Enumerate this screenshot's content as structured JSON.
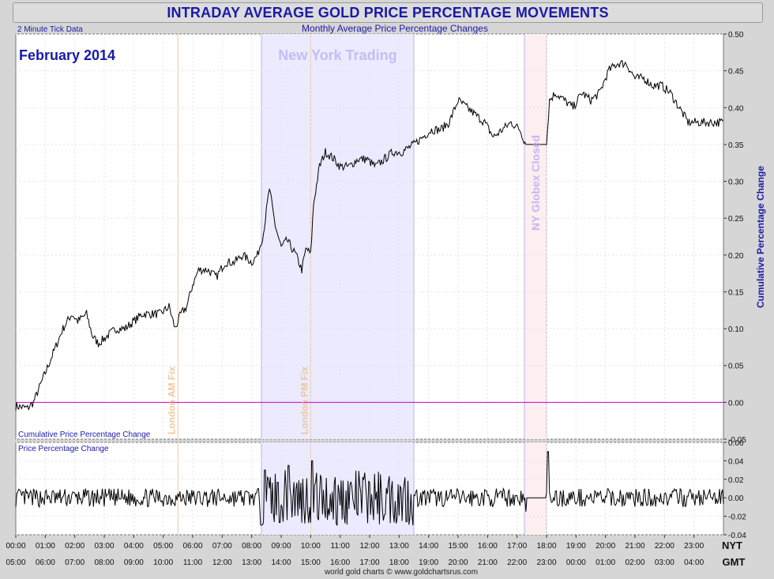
{
  "title": "INTRADAY AVERAGE GOLD PRICE PERCENTAGE MOVEMENTS",
  "subtitle": "Monthly Average Price Percentage Changes",
  "tick_note": "2 Minute Tick Data",
  "period_label": "February 2014",
  "footer": "world gold charts © www.goldchartsrus.com",
  "colors": {
    "accent": "#1a1aa8",
    "line": "#000000",
    "zero_line": "#cc00cc",
    "fix": "#f0c9a0",
    "ny_shade": "#ebeaff",
    "globex_shade": "#fdeef0",
    "band_border": "#b5b5e6"
  },
  "chart_data": [
    {
      "type": "line",
      "title": "Cumulative Price Percentage Change",
      "ylabel": "Cumulative Percentage Change",
      "ylim": [
        -0.05,
        0.5
      ],
      "yticks": [
        "0.50",
        "0.45",
        "0.40",
        "0.35",
        "0.30",
        "0.25",
        "0.20",
        "0.15",
        "0.10",
        "0.05",
        "0.00",
        "-0.05"
      ],
      "ytick_values": [
        0.5,
        0.45,
        0.4,
        0.35,
        0.3,
        0.25,
        0.2,
        0.15,
        0.1,
        0.05,
        0,
        -0.05
      ],
      "x_labels_nyt": [
        "00:00",
        "01:00",
        "02:00",
        "03:00",
        "04:00",
        "05:00",
        "06:00",
        "07:00",
        "08:00",
        "09:00",
        "10:00",
        "11:00",
        "12:00",
        "13:00",
        "14:00",
        "15:00",
        "16:00",
        "17:00",
        "18:00",
        "19:00",
        "20:00",
        "21:00",
        "22:00",
        "23:00"
      ],
      "x_labels_gmt": [
        "05:00",
        "06:00",
        "07:00",
        "08:00",
        "09:00",
        "10:00",
        "11:00",
        "12:00",
        "13:00",
        "14:00",
        "15:00",
        "16:00",
        "17:00",
        "18:00",
        "19:00",
        "20:00",
        "21:00",
        "22:00",
        "23:00",
        "00:00",
        "01:00",
        "02:00",
        "03:00",
        "04:00"
      ],
      "x_axis_nyt": "NYT",
      "x_axis_gmt": "GMT",
      "series": [
        {
          "points": [
            [
              0,
              -0.005
            ],
            [
              0.4,
              -0.008
            ],
            [
              0.6,
              0.0
            ],
            [
              1.0,
              0.04
            ],
            [
              1.3,
              0.07
            ],
            [
              1.6,
              0.1
            ],
            [
              1.9,
              0.12
            ],
            [
              2.1,
              0.11
            ],
            [
              2.4,
              0.12
            ],
            [
              2.6,
              0.09
            ],
            [
              2.8,
              0.08
            ],
            [
              3.1,
              0.09
            ],
            [
              3.4,
              0.1
            ],
            [
              3.7,
              0.1
            ],
            [
              4.0,
              0.11
            ],
            [
              4.3,
              0.12
            ],
            [
              4.6,
              0.12
            ],
            [
              4.9,
              0.12
            ],
            [
              5.2,
              0.13
            ],
            [
              5.4,
              0.1
            ],
            [
              5.6,
              0.12
            ],
            [
              5.8,
              0.13
            ],
            [
              6.0,
              0.16
            ],
            [
              6.2,
              0.18
            ],
            [
              6.5,
              0.18
            ],
            [
              6.8,
              0.17
            ],
            [
              7.1,
              0.19
            ],
            [
              7.4,
              0.19
            ],
            [
              7.7,
              0.2
            ],
            [
              8.0,
              0.19
            ],
            [
              8.2,
              0.2
            ],
            [
              8.4,
              0.23
            ],
            [
              8.6,
              0.29
            ],
            [
              8.8,
              0.24
            ],
            [
              9.0,
              0.21
            ],
            [
              9.2,
              0.22
            ],
            [
              9.5,
              0.2
            ],
            [
              9.7,
              0.18
            ],
            [
              9.85,
              0.21
            ],
            [
              10.0,
              0.2
            ],
            [
              10.1,
              0.27
            ],
            [
              10.3,
              0.32
            ],
            [
              10.5,
              0.34
            ],
            [
              10.8,
              0.33
            ],
            [
              11.0,
              0.32
            ],
            [
              11.3,
              0.32
            ],
            [
              11.6,
              0.33
            ],
            [
              11.9,
              0.33
            ],
            [
              12.2,
              0.32
            ],
            [
              12.5,
              0.33
            ],
            [
              12.8,
              0.34
            ],
            [
              13.1,
              0.34
            ],
            [
              13.5,
              0.35
            ],
            [
              13.8,
              0.36
            ],
            [
              14.1,
              0.37
            ],
            [
              14.4,
              0.37
            ],
            [
              14.7,
              0.38
            ],
            [
              15.0,
              0.41
            ],
            [
              15.3,
              0.4
            ],
            [
              15.6,
              0.39
            ],
            [
              15.9,
              0.38
            ],
            [
              16.2,
              0.36
            ],
            [
              16.5,
              0.37
            ],
            [
              16.8,
              0.38
            ],
            [
              17.1,
              0.37
            ],
            [
              17.3,
              0.35
            ],
            [
              17.6,
              0.35
            ],
            [
              18.0,
              0.35
            ],
            [
              18.1,
              0.41
            ],
            [
              18.3,
              0.42
            ],
            [
              18.6,
              0.41
            ],
            [
              18.9,
              0.4
            ],
            [
              19.2,
              0.42
            ],
            [
              19.5,
              0.41
            ],
            [
              19.8,
              0.42
            ],
            [
              20.1,
              0.45
            ],
            [
              20.4,
              0.46
            ],
            [
              20.7,
              0.46
            ],
            [
              21.0,
              0.44
            ],
            [
              21.3,
              0.44
            ],
            [
              21.6,
              0.43
            ],
            [
              21.9,
              0.43
            ],
            [
              22.2,
              0.42
            ],
            [
              22.5,
              0.4
            ],
            [
              22.8,
              0.38
            ],
            [
              23.2,
              0.38
            ],
            [
              23.7,
              0.38
            ],
            [
              24.0,
              0.38
            ]
          ]
        }
      ]
    },
    {
      "type": "line",
      "title": "Price Percentage Change",
      "ylim": [
        -0.04,
        0.06
      ],
      "yticks": [
        "0.06",
        "0.04",
        "0.02",
        "0.00",
        "-0.02",
        "-0.04"
      ],
      "ytick_values": [
        0.06,
        0.04,
        0.02,
        0,
        -0.02,
        -0.04
      ],
      "amplitude_by_session": [
        {
          "from": 0,
          "to": 8.3,
          "amplitude": 0.01
        },
        {
          "from": 8.3,
          "to": 13.5,
          "amplitude": 0.03
        },
        {
          "from": 13.5,
          "to": 17.25,
          "amplitude": 0.01
        },
        {
          "from": 17.25,
          "to": 18.0,
          "amplitude": 0.0
        },
        {
          "from": 18.0,
          "to": 24.0,
          "amplitude": 0.01
        }
      ],
      "spikes": [
        [
          8.45,
          0.03
        ],
        [
          9.25,
          0.035
        ],
        [
          10.05,
          0.04
        ],
        [
          10.9,
          -0.03
        ],
        [
          17.3,
          -0.015
        ],
        [
          18.05,
          0.05
        ]
      ]
    }
  ],
  "annotations": {
    "london_am": {
      "label": "London AM Fix",
      "x": 5.5
    },
    "london_pm": {
      "label": "London PM Fix",
      "x": 10.0
    },
    "ny_trading": {
      "label": "New York Trading",
      "from": 8.33,
      "to": 13.5
    },
    "globex": {
      "label": "NY Globex Closed",
      "from": 17.25,
      "to": 18.0
    }
  }
}
